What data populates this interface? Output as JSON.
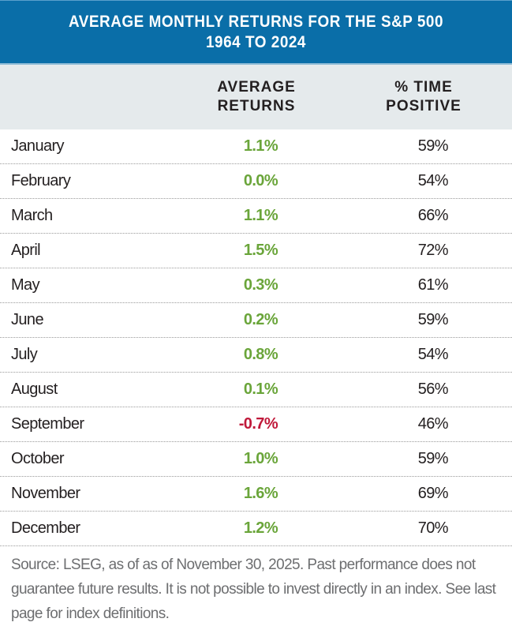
{
  "title": {
    "line1": "AVERAGE MONTHLY RETURNS FOR THE S&P 500",
    "line2": "1964 TO 2024"
  },
  "colors": {
    "header_bg": "#0a6ea8",
    "positive": "#6aa53a",
    "negative": "#c0193a",
    "subheader_bg": "#e5eaec"
  },
  "chart_data": {
    "type": "table",
    "title": "AVERAGE MONTHLY RETURNS FOR THE S&P 500 1964 TO 2024",
    "columns": [
      "",
      "AVERAGE RETURNS",
      "% TIME POSITIVE"
    ],
    "header": {
      "avg_line1": "AVERAGE",
      "avg_line2": "RETURNS",
      "pct_line1": "% TIME",
      "pct_line2": "POSITIVE"
    },
    "rows": [
      {
        "month": "January",
        "avg": "1.1%",
        "pct": "59%"
      },
      {
        "month": "February",
        "avg": "0.0%",
        "pct": "54%"
      },
      {
        "month": "March",
        "avg": "1.1%",
        "pct": "66%"
      },
      {
        "month": "April",
        "avg": "1.5%",
        "pct": "72%"
      },
      {
        "month": "May",
        "avg": "0.3%",
        "pct": "61%"
      },
      {
        "month": "June",
        "avg": "0.2%",
        "pct": "59%"
      },
      {
        "month": "July",
        "avg": "0.8%",
        "pct": "54%"
      },
      {
        "month": "August",
        "avg": "0.1%",
        "pct": "56%"
      },
      {
        "month": "September",
        "avg": "-0.7%",
        "pct": "46%"
      },
      {
        "month": "October",
        "avg": "1.0%",
        "pct": "59%"
      },
      {
        "month": "November",
        "avg": "1.6%",
        "pct": "69%"
      },
      {
        "month": "December",
        "avg": "1.2%",
        "pct": "70%"
      }
    ]
  },
  "footnote": "Source: LSEG, as of as of November 30, 2025. Past performance does not guarantee future results. It is not possible to invest directly in an index. See last page for index definitions."
}
